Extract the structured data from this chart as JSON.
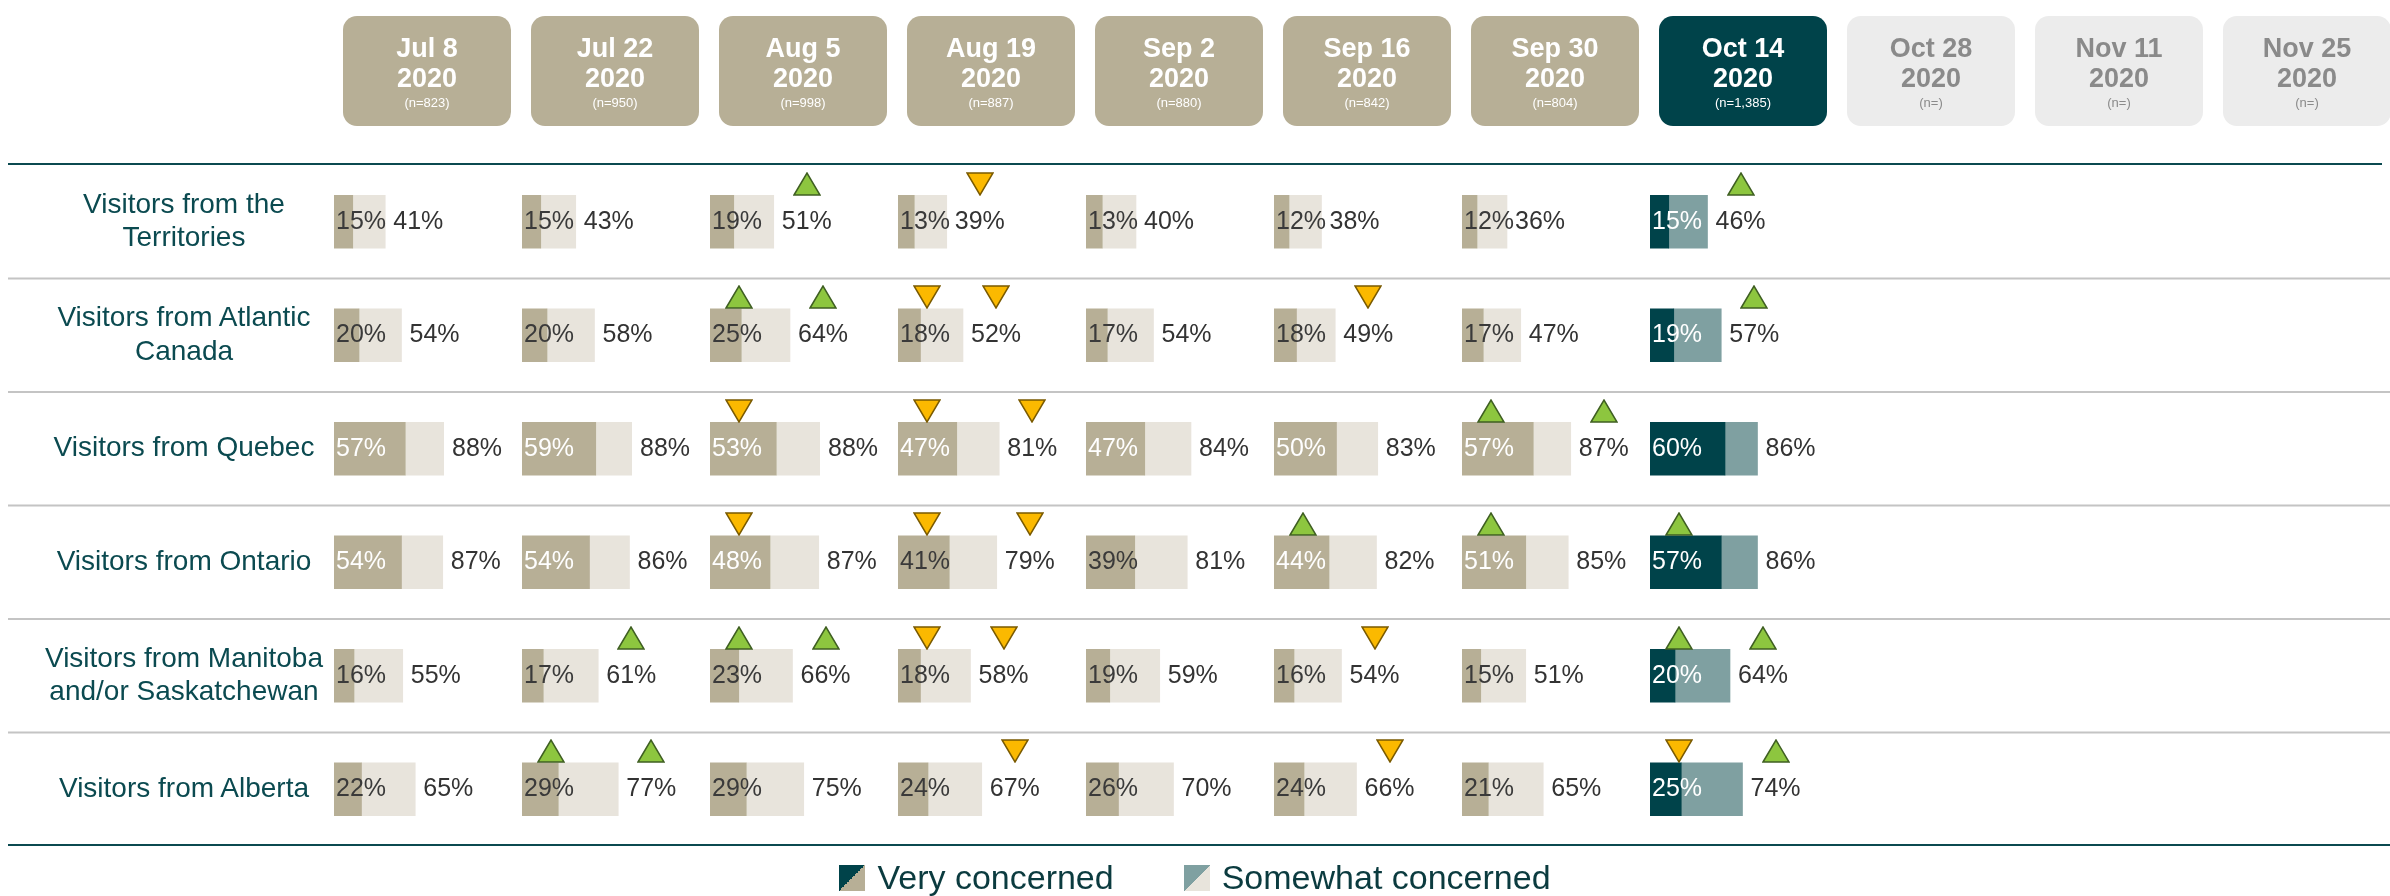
{
  "chart_data": [
    {
      "type": "bar",
      "orientation": "horizontal",
      "stacked": true,
      "title": "Jul 8 2020",
      "subtitle": "(n=823)",
      "categories": [
        "Visitors from the Territories",
        "Visitors from Atlantic Canada",
        "Visitors from Quebec",
        "Visitors from Ontario",
        "Visitors from Manitoba and/or Saskatchewan",
        "Visitors from Alberta"
      ],
      "tick_labels": "y",
      "grid": "y",
      "series": [
        {
          "color": "#b7af96",
          "values": [
            15,
            20,
            57,
            54,
            16,
            22
          ],
          "value_labels": [
            "15%",
            "20%",
            "57%",
            "54%",
            "16%",
            "22%"
          ]
        },
        {
          "color": "#e8e4dc",
          "values": [
            26,
            34,
            31,
            33,
            39,
            43
          ]
        }
      ],
      "totals": [
        "41%",
        "54%",
        "88%",
        "87%",
        "55%",
        "65%"
      ]
    },
    {
      "type": "bar",
      "orientation": "horizontal",
      "stacked": true,
      "title": "Jul 22 2020",
      "subtitle": "(n=950)",
      "tick_labels": false,
      "grid": "y",
      "series": [
        {
          "color": "#b7af96",
          "values": [
            15,
            20,
            59,
            54,
            17,
            29
          ],
          "value_labels": [
            "15%",
            "20%",
            "59%",
            "54%",
            "17%",
            "29%"
          ]
        },
        {
          "color": "#e8e4dc",
          "values": [
            28,
            38,
            29,
            32,
            44,
            48
          ]
        }
      ],
      "totals": [
        "43%",
        "58%",
        "88%",
        "86%",
        "61%",
        "77%"
      ]
    },
    {
      "type": "bar",
      "orientation": "horizontal",
      "stacked": true,
      "title": "Aug 5 2020",
      "subtitle": "(n=998)",
      "tick_labels": false,
      "grid": "y",
      "series": [
        {
          "color": "#b7af96",
          "values": [
            19,
            25,
            53,
            48,
            23,
            29
          ],
          "value_labels": [
            "19%",
            "25%",
            "53%",
            "48%",
            "23%",
            "29%"
          ]
        },
        {
          "color": "#e8e4dc",
          "values": [
            32,
            39,
            35,
            39,
            43,
            46
          ]
        }
      ],
      "totals": [
        "51%",
        "64%",
        "88%",
        "87%",
        "66%",
        "75%"
      ]
    },
    {
      "type": "bar",
      "orientation": "horizontal",
      "stacked": true,
      "title": "Aug 19 2020",
      "subtitle": "(n=887)",
      "tick_labels": false,
      "grid": "y",
      "series": [
        {
          "color": "#b7af96",
          "values": [
            13,
            18,
            47,
            41,
            18,
            24
          ],
          "value_labels": [
            "13%",
            "18%",
            "47%",
            "41%",
            "18%",
            "24%"
          ]
        },
        {
          "color": "#e8e4dc",
          "values": [
            26,
            34,
            34,
            38,
            40,
            43
          ]
        }
      ],
      "totals": [
        "39%",
        "52%",
        "81%",
        "79%",
        "58%",
        "67%"
      ]
    },
    {
      "type": "bar",
      "orientation": "horizontal",
      "stacked": true,
      "title": "Sep 2 2020",
      "subtitle": "(n=880)",
      "tick_labels": false,
      "grid": "y",
      "series": [
        {
          "color": "#b7af96",
          "values": [
            13,
            17,
            47,
            39,
            19,
            26
          ],
          "value_labels": [
            "13%",
            "17%",
            "47%",
            "39%",
            "19%",
            "26%"
          ]
        },
        {
          "color": "#e8e4dc",
          "values": [
            27,
            37,
            37,
            42,
            40,
            44
          ]
        }
      ],
      "totals": [
        "40%",
        "54%",
        "84%",
        "81%",
        "59%",
        "70%"
      ]
    },
    {
      "type": "bar",
      "orientation": "horizontal",
      "stacked": true,
      "title": "Sep 16 2020",
      "subtitle": "(n=842)",
      "tick_labels": false,
      "grid": "y",
      "series": [
        {
          "color": "#b7af96",
          "values": [
            12,
            18,
            50,
            44,
            16,
            24
          ],
          "value_labels": [
            "12%",
            "18%",
            "50%",
            "44%",
            "16%",
            "24%"
          ]
        },
        {
          "color": "#e8e4dc",
          "values": [
            26,
            31,
            33,
            38,
            38,
            42
          ]
        }
      ],
      "totals": [
        "38%",
        "49%",
        "83%",
        "82%",
        "54%",
        "66%"
      ]
    },
    {
      "type": "bar",
      "orientation": "horizontal",
      "stacked": true,
      "title": "Sep 30 2020",
      "subtitle": "(n=804)",
      "tick_labels": false,
      "grid": "y",
      "series": [
        {
          "color": "#b7af96",
          "values": [
            12,
            17,
            57,
            51,
            15,
            21
          ],
          "value_labels": [
            "12%",
            "17%",
            "57%",
            "51%",
            "15%",
            "21%"
          ]
        },
        {
          "color": "#e8e4dc",
          "values": [
            24,
            30,
            30,
            34,
            36,
            44
          ]
        }
      ],
      "totals": [
        "36%",
        "47%",
        "87%",
        "85%",
        "51%",
        "65%"
      ]
    },
    {
      "type": "bar",
      "orientation": "horizontal",
      "stacked": true,
      "title": "Oct 14 2020",
      "subtitle": "(n=1,385)",
      "tick_labels": false,
      "grid": "y",
      "legend": "bottom",
      "series": [
        {
          "name": "Very concerned",
          "color": "#00434a",
          "values": [
            15,
            19,
            60,
            57,
            20,
            25
          ],
          "value_labels": [
            "15%",
            "19%",
            "60%",
            "57%",
            "20%",
            "25%"
          ]
        },
        {
          "name": "Somewhat concerned",
          "color": "#7fa0a1",
          "values": [
            31,
            38,
            26,
            29,
            44,
            49
          ]
        }
      ],
      "totals": [
        "46%",
        "57%",
        "86%",
        "86%",
        "64%",
        "74%"
      ]
    },
    {
      "type": "other",
      "title": "Oct 28 2020",
      "subtitle": "(n=)"
    },
    {
      "type": "other",
      "title": "Nov 11 2020",
      "subtitle": "(n=)"
    },
    {
      "type": "other",
      "title": "Nov 25 2020",
      "subtitle": "(n=)"
    }
  ]
}
